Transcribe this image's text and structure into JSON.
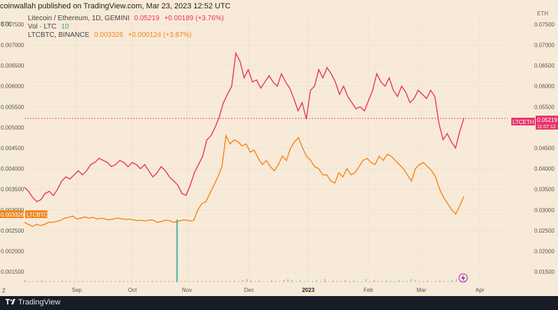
{
  "header": {
    "published_text": "coinwallah published on TradingView.com, Mar 23, 2023 12:52 UTC"
  },
  "legend": {
    "main_symbol": "Litecoin / Ethereum, 1D, GEMINI",
    "main_value": "0.05219",
    "main_change": "+0.00189 (+3.76%)",
    "volume_label": "Vol · LTC",
    "volume_value": "10",
    "compare_symbol": "LTCBTC, BINANCE",
    "compare_value": "0.003326",
    "compare_change": "+0.000124 (+3.87%)"
  },
  "left_axis_title": "BTC",
  "right_axis_title": "ETH",
  "tags": {
    "ltceth_label": "LTCETH",
    "ltceth_value": "0.05219",
    "ltceth_countdown": "11:07:12",
    "ltcbtc_label": "LTCBTC",
    "ltcbtc_value": "0.003326"
  },
  "footer": {
    "brand": "TradingView"
  },
  "chart_data": {
    "type": "line",
    "x_labels": [
      "Sep",
      "Oct",
      "Nov",
      "Dec",
      "2023",
      "Feb",
      "Mar",
      "Apr"
    ],
    "right_axis": {
      "ticks": [
        "0.07500",
        "0.07000",
        "0.06500",
        "0.06000",
        "0.05500",
        "0.04500",
        "0.04000",
        "0.03500",
        "0.03000",
        "0.02500",
        "0.02000",
        "0.01500"
      ],
      "range": [
        0.0125,
        0.0775
      ]
    },
    "left_axis": {
      "ticks": [
        "0.007500",
        "0.007000",
        "0.006500",
        "0.006000",
        "0.005500",
        "0.005000",
        "0.004500",
        "0.004000",
        "0.003500",
        "0.003000",
        "0.002500",
        "0.002000",
        "0.001500"
      ],
      "range": [
        0.00125,
        0.00775
      ]
    },
    "series": [
      {
        "name": "Litecoin / Ethereum",
        "color": "#e8336b",
        "axis": "right",
        "values": [
          0.0355,
          0.0345,
          0.033,
          0.032,
          0.0325,
          0.034,
          0.0345,
          0.0335,
          0.035,
          0.037,
          0.038,
          0.0375,
          0.0385,
          0.0395,
          0.0385,
          0.0395,
          0.041,
          0.0415,
          0.0425,
          0.042,
          0.0415,
          0.0405,
          0.041,
          0.042,
          0.0415,
          0.0405,
          0.0415,
          0.041,
          0.04,
          0.041,
          0.0395,
          0.038,
          0.039,
          0.0405,
          0.0395,
          0.038,
          0.037,
          0.036,
          0.034,
          0.0335,
          0.036,
          0.039,
          0.041,
          0.043,
          0.047,
          0.048,
          0.05,
          0.0525,
          0.056,
          0.058,
          0.06,
          0.068,
          0.066,
          0.062,
          0.064,
          0.061,
          0.0615,
          0.0595,
          0.061,
          0.0625,
          0.061,
          0.06,
          0.063,
          0.061,
          0.0595,
          0.057,
          0.054,
          0.056,
          0.052,
          0.059,
          0.06,
          0.064,
          0.062,
          0.0645,
          0.063,
          0.061,
          0.058,
          0.06,
          0.0575,
          0.056,
          0.0545,
          0.055,
          0.054,
          0.0565,
          0.059,
          0.063,
          0.061,
          0.06,
          0.062,
          0.059,
          0.0575,
          0.06,
          0.0585,
          0.056,
          0.057,
          0.059,
          0.058,
          0.057,
          0.059,
          0.0575,
          0.051,
          0.047,
          0.0485,
          0.0465,
          0.045,
          0.049,
          0.0522
        ]
      },
      {
        "name": "LTCBTC, BINANCE",
        "color": "#f0861b",
        "axis": "left",
        "values": [
          0.0027,
          0.00265,
          0.0026,
          0.00265,
          0.00262,
          0.00265,
          0.0027,
          0.0027,
          0.00272,
          0.00275,
          0.0028,
          0.00282,
          0.00285,
          0.00278,
          0.0028,
          0.00283,
          0.0028,
          0.00282,
          0.00278,
          0.0028,
          0.00278,
          0.00276,
          0.00278,
          0.0028,
          0.00279,
          0.00277,
          0.00278,
          0.00276,
          0.00274,
          0.00275,
          0.00273,
          0.00276,
          0.00275,
          0.0027,
          0.00272,
          0.00275,
          0.00274,
          0.0027,
          0.00272,
          0.00275,
          0.00276,
          0.00273,
          0.00275,
          0.003,
          0.00315,
          0.0032,
          0.0034,
          0.0036,
          0.0038,
          0.00405,
          0.0048,
          0.0046,
          0.0047,
          0.00465,
          0.00455,
          0.0046,
          0.0044,
          0.00445,
          0.00425,
          0.0041,
          0.0042,
          0.00405,
          0.00395,
          0.0041,
          0.0043,
          0.0042,
          0.0045,
          0.00465,
          0.00475,
          0.0045,
          0.0043,
          0.0042,
          0.00405,
          0.004,
          0.00385,
          0.00385,
          0.0037,
          0.00365,
          0.0039,
          0.0038,
          0.004,
          0.00385,
          0.0039,
          0.00405,
          0.0042,
          0.00425,
          0.00415,
          0.0041,
          0.0043,
          0.0042,
          0.00435,
          0.0043,
          0.0042,
          0.0041,
          0.004,
          0.00385,
          0.0037,
          0.004,
          0.0041,
          0.00415,
          0.00405,
          0.00395,
          0.0038,
          0.0035,
          0.0033,
          0.00315,
          0.003,
          0.0029,
          0.0031,
          0.003326
        ]
      },
      {
        "name": "Vol · LTC",
        "color": "#26a69a",
        "axis": "volume",
        "values": [
          2,
          1,
          1,
          1,
          2,
          1,
          1,
          1,
          1,
          2,
          1,
          1,
          1,
          1,
          1,
          1,
          1,
          1,
          1,
          1,
          1,
          1,
          1,
          1,
          1,
          1,
          1,
          1,
          1,
          1,
          1,
          1,
          1,
          1,
          1,
          1,
          1,
          60,
          1,
          1,
          1,
          1,
          1,
          1,
          1,
          1,
          1,
          1,
          1,
          1,
          1,
          2,
          1,
          2,
          3,
          2,
          1,
          2,
          1,
          1,
          2,
          1,
          1,
          2,
          3,
          2,
          1,
          2,
          1,
          1,
          1,
          2,
          1,
          3,
          1,
          2,
          1,
          1,
          2,
          1,
          2,
          1,
          1,
          3,
          1,
          2,
          1,
          1,
          2,
          1,
          1,
          2,
          1,
          1,
          3,
          2,
          1,
          1,
          2,
          1,
          1,
          2,
          1,
          1,
          2,
          3,
          1,
          2
        ]
      }
    ],
    "guide_value": 0.05219,
    "grid": true
  }
}
